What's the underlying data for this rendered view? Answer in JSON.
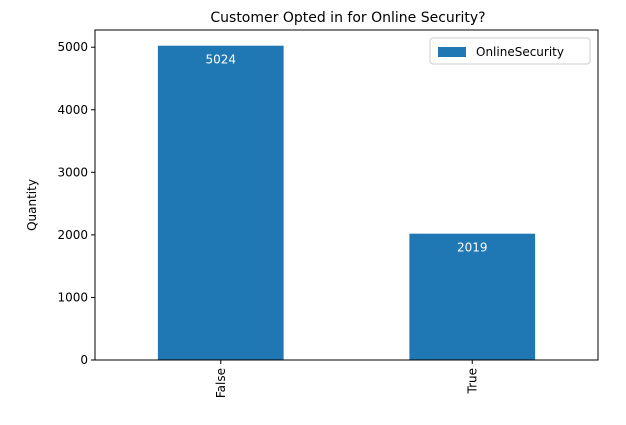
{
  "chart_data": {
    "type": "bar",
    "title": "Customer Opted in for Online Security?",
    "xlabel": "",
    "ylabel": "Quantity",
    "categories": [
      "False",
      "True"
    ],
    "series": [
      {
        "name": "OnlineSecurity",
        "values": [
          5024,
          2019
        ],
        "color": "#1f77b4"
      }
    ],
    "data_labels": [
      "5024",
      "2019"
    ],
    "ylim": [
      0,
      5275
    ],
    "yticks": [
      0,
      1000,
      2000,
      3000,
      4000,
      5000
    ],
    "ytick_labels": [
      "0",
      "1000",
      "2000",
      "3000",
      "4000",
      "5000"
    ],
    "grid": false,
    "legend_position": "top-right",
    "x_tick_rotation": "vertical"
  }
}
